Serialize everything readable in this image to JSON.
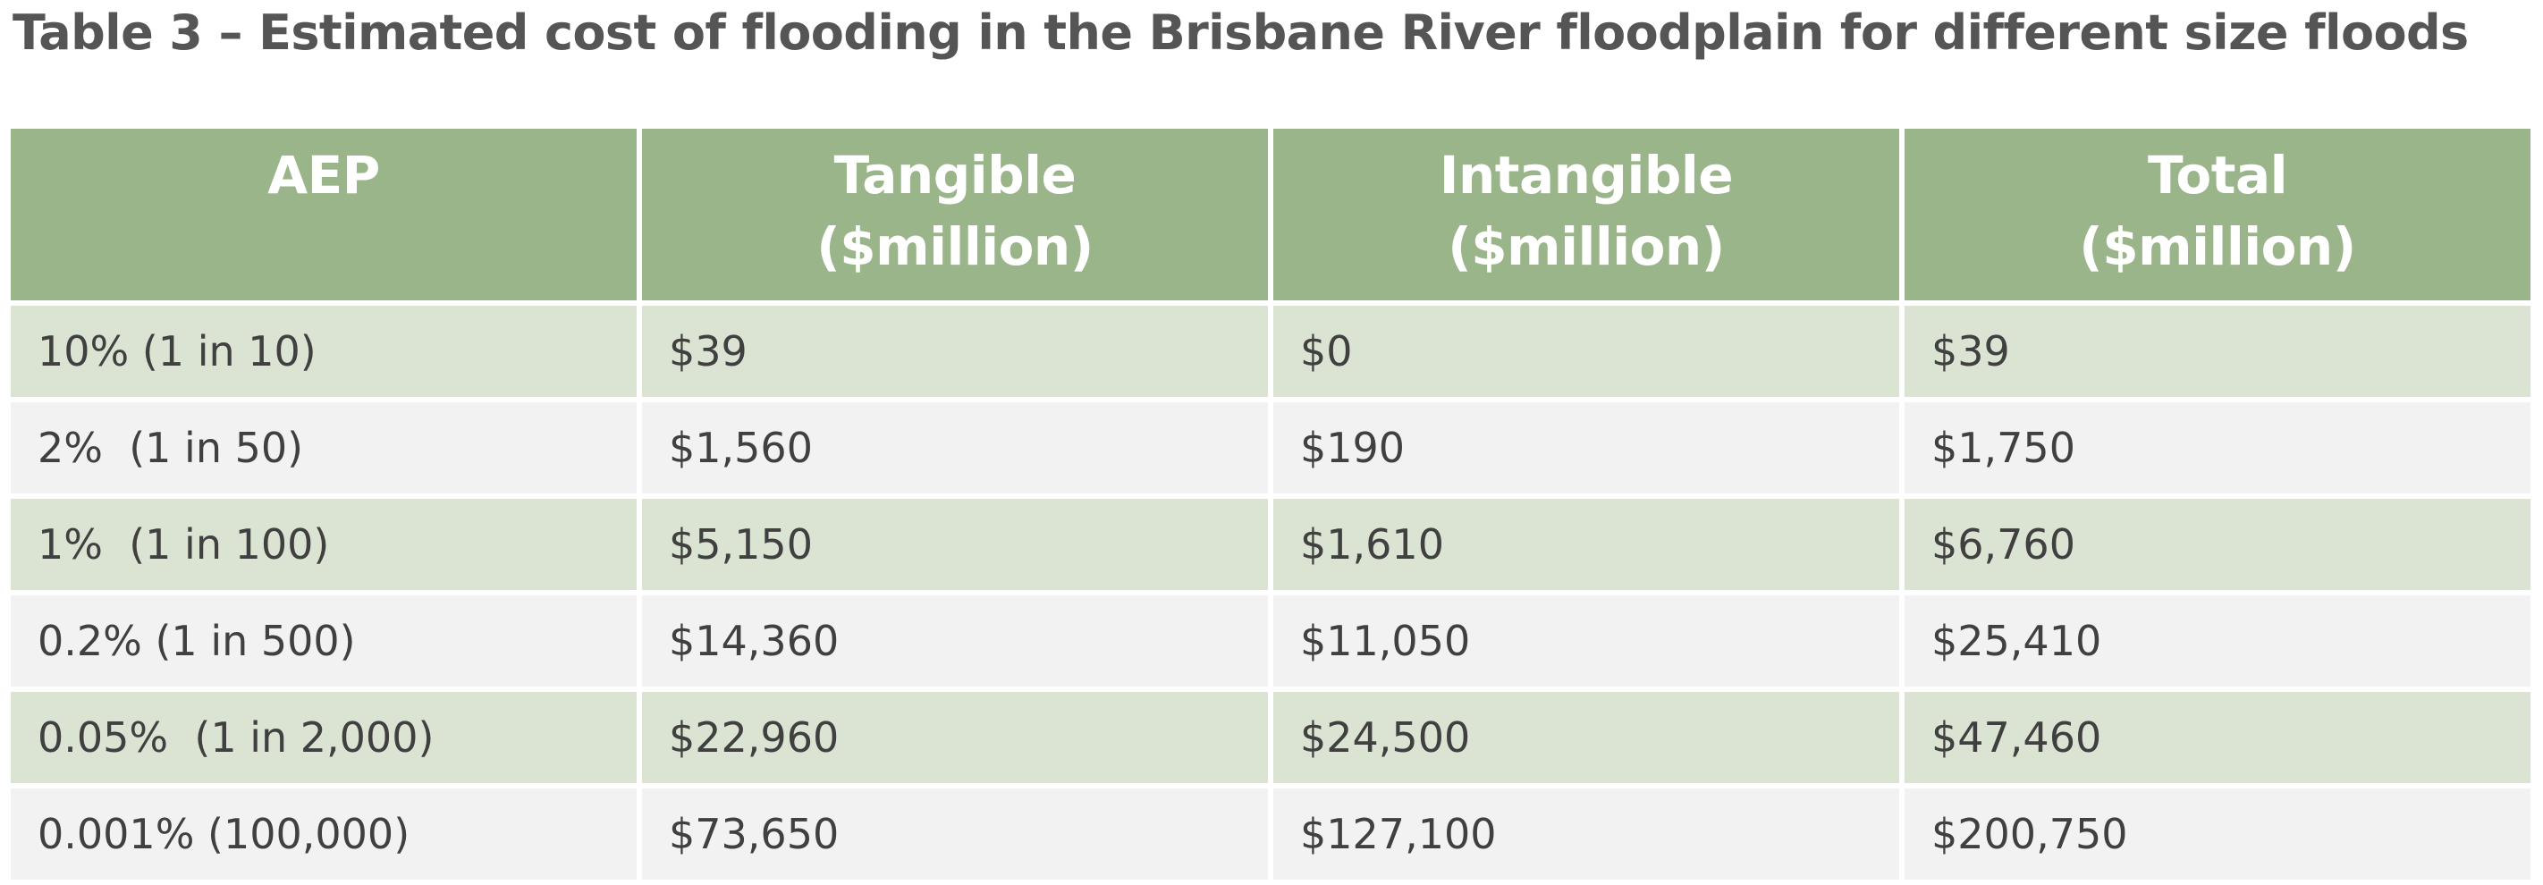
{
  "title": "Table 3 – Estimated cost of flooding in the Brisbane River floodplain for different size floods",
  "columns": [
    {
      "line1": "AEP",
      "line2": ""
    },
    {
      "line1": "Tangible",
      "line2": "($million)"
    },
    {
      "line1": "Intangible",
      "line2": "($million)"
    },
    {
      "line1": "Total",
      "line2": "($million)"
    }
  ],
  "rows": [
    {
      "aep": "10% (1 in 10)",
      "tangible": "$39",
      "intangible": "$0",
      "total": "$39"
    },
    {
      "aep": "2%  (1 in 50)",
      "tangible": "$1,560",
      "intangible": "$190",
      "total": "$1,750"
    },
    {
      "aep": "1%  (1 in 100)",
      "tangible": "$5,150",
      "intangible": "$1,610",
      "total": "$6,760"
    },
    {
      "aep": "0.2% (1 in 500)",
      "tangible": "$14,360",
      "intangible": "$11,050",
      "total": "$25,410"
    },
    {
      "aep": "0.05%  (1 in 2,000)",
      "tangible": "$22,960",
      "intangible": "$24,500",
      "total": "$47,460"
    },
    {
      "aep": "0.001% (100,000)",
      "tangible": "$73,650",
      "intangible": "$127,100",
      "total": "$200,750"
    }
  ],
  "colors": {
    "header_bg": "#9bb58a",
    "header_text": "#ffffff",
    "row_odd_bg": "#dbe3d2",
    "row_even_bg": "#f2f2f2",
    "body_text": "#404040",
    "title_text": "#555555"
  }
}
